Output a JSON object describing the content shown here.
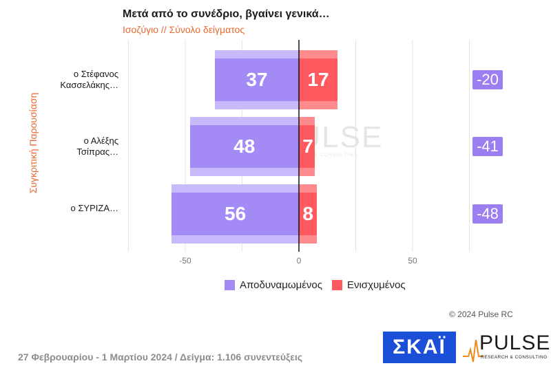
{
  "header": {
    "title": "Μετά από το συνέδριο, βγαίνει γενικά…",
    "subtitle": "Ισοζύγιο // Σύνολο δείγματος",
    "y_axis_label": "Συγκριτική Παρουσίαση"
  },
  "chart_data": {
    "type": "bar",
    "orientation": "horizontal-diverging",
    "categories": [
      "ο Στέφανος\nΚασσελάκης…",
      "ο Αλέξης\nΤσίπρας…",
      "ο ΣΥΡΙΖΑ…"
    ],
    "series": [
      {
        "name": "Αποδυναμωμένος",
        "values": [
          37,
          48,
          56
        ],
        "color": "#a38af5",
        "direction": "negative"
      },
      {
        "name": "Ενισχυμένος",
        "values": [
          17,
          7,
          8
        ],
        "color": "#ff5a5f",
        "direction": "positive"
      }
    ],
    "net": [
      "-20",
      "-41",
      "-48"
    ],
    "net_color": "#9b7ef0",
    "x_ticks": [
      "-50",
      "0",
      "50"
    ],
    "xlim": [
      -75,
      75
    ],
    "grid": true,
    "legend_position": "bottom"
  },
  "watermark": {
    "word": "PULSE",
    "tag": "RESEARCH & CONSULTING"
  },
  "copyright": "© 2024 Pulse RC",
  "footer": {
    "text": "27 Φεβρουαρίου - 1 Μαρτίου 2024  /  Δείγμα:  1.106 συνεντεύξεις"
  },
  "logos": {
    "skai": "ΣΚΑΪ",
    "pulse_word": "PULSE",
    "pulse_tag": "RESEARCH & CONSULTING"
  }
}
